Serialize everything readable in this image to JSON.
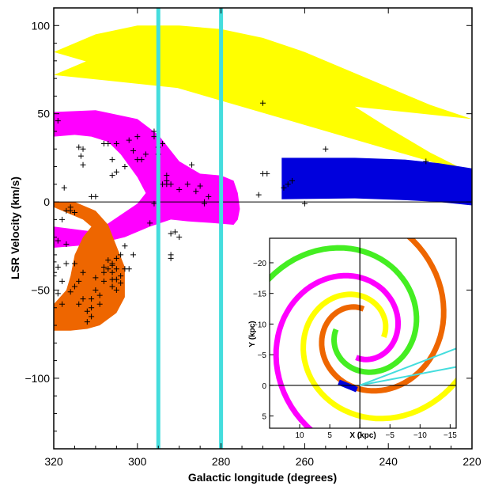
{
  "chart_data": [
    {
      "type": "scatter",
      "title": "",
      "xlabel": "Galactic longitude (degrees)",
      "ylabel": "LSR Velocity (km/s)",
      "xlim": [
        320,
        220
      ],
      "ylim": [
        -140,
        110
      ],
      "xticks": [
        320,
        300,
        280,
        260,
        240,
        220
      ],
      "yticks": [
        100,
        50,
        0,
        -50,
        -100
      ],
      "grid": false,
      "legend": "none",
      "colors": {
        "yellow": "#ffff00",
        "magenta": "#ff00ff",
        "orange": "#ee6600",
        "blue": "#0000dd",
        "cyan": "#44dddd",
        "points": "#000000"
      },
      "bands": [
        {
          "color": "yellow",
          "upper": [
            [
              320,
              85
            ],
            [
              310,
              95
            ],
            [
              300,
              100
            ],
            [
              290,
              100
            ],
            [
              280,
              98
            ],
            [
              270,
              93
            ],
            [
              260,
              85
            ],
            [
              250,
              75
            ],
            [
              240,
              65
            ],
            [
              230,
              55
            ],
            [
              220,
              47
            ]
          ],
          "lower": [
            [
              320,
              72
            ],
            [
              310,
              82
            ],
            [
              300,
              86
            ],
            [
              290,
              85
            ],
            [
              280,
              83
            ],
            [
              270,
              78
            ],
            [
              260,
              70
            ],
            [
              250,
              57
            ],
            [
              240,
              42
            ],
            [
              230,
              28
            ],
            [
              220,
              16
            ]
          ]
        },
        {
          "color": "magenta",
          "upper": [
            [
              320,
              51
            ],
            [
              310,
              52
            ],
            [
              300,
              47
            ],
            [
              295,
              38
            ],
            [
              290,
              23
            ],
            [
              285,
              16
            ],
            [
              280,
              15
            ],
            [
              277,
              12
            ],
            [
              276,
              5
            ],
            [
              275.5,
              -4
            ],
            [
              276,
              -10
            ],
            [
              277,
              -13
            ],
            [
              282,
              -12
            ],
            [
              288,
              -11
            ],
            [
              292,
              -10
            ],
            [
              297,
              -14
            ],
            [
              303,
              -20
            ],
            [
              310,
              -24
            ],
            [
              320,
              -26
            ]
          ],
          "lower": [
            [
              320,
              -14
            ],
            [
              310,
              -17
            ],
            [
              305,
              -9
            ],
            [
              300,
              -1
            ],
            [
              297,
              8
            ],
            [
              293,
              12
            ],
            [
              289,
              17
            ],
            [
              285,
              14
            ],
            [
              282,
              9
            ],
            [
              280,
              3
            ],
            [
              282,
              -3
            ],
            [
              288,
              -5
            ],
            [
              292,
              -4
            ],
            [
              296,
              -4
            ],
            [
              300,
              14
            ],
            [
              304,
              27
            ],
            [
              307,
              34
            ],
            [
              311,
              37
            ],
            [
              315,
              38
            ],
            [
              320,
              37
            ]
          ]
        },
        {
          "color": "orange",
          "upper": [
            [
              320,
              0
            ],
            [
              315,
              0
            ],
            [
              310,
              -5
            ],
            [
              307,
              -13
            ],
            [
              305,
              -25
            ],
            [
              303,
              -37
            ],
            [
              303,
              -54
            ],
            [
              305,
              -63
            ],
            [
              309,
              -70
            ],
            [
              312,
              -72
            ],
            [
              316,
              -73
            ],
            [
              320,
              -73
            ]
          ],
          "lower": [
            [
              320,
              -58
            ],
            [
              317,
              -50
            ],
            [
              316,
              -42
            ],
            [
              315,
              -30
            ],
            [
              313,
              -20
            ],
            [
              311,
              -14
            ],
            [
              313,
              -10
            ],
            [
              318,
              -5
            ],
            [
              320,
              -3
            ]
          ]
        },
        {
          "color": "blue",
          "upper": [
            [
              265.5,
              25
            ],
            [
              248,
              25
            ],
            [
              236,
              24
            ],
            [
              228,
              22
            ],
            [
              220,
              19
            ]
          ],
          "lower": [
            [
              220,
              -2
            ],
            [
              228,
              0
            ],
            [
              236,
              1
            ],
            [
              248,
              2
            ],
            [
              265.5,
              1.5
            ]
          ]
        }
      ],
      "vertical_lines": [
        {
          "x": 295,
          "color": "cyan"
        },
        {
          "x": 280,
          "color": "cyan"
        }
      ],
      "reference_lines": [
        {
          "y": 0
        }
      ],
      "points": [
        [
          319,
          46
        ],
        [
          317.5,
          8
        ],
        [
          317,
          -5
        ],
        [
          314,
          31
        ],
        [
          313,
          30
        ],
        [
          313.5,
          26
        ],
        [
          313,
          21
        ],
        [
          311,
          3
        ],
        [
          310,
          3
        ],
        [
          308,
          33
        ],
        [
          307,
          33
        ],
        [
          306,
          24
        ],
        [
          305,
          33
        ],
        [
          305,
          17
        ],
        [
          306,
          15
        ],
        [
          303,
          20
        ],
        [
          302,
          35
        ],
        [
          301,
          29
        ],
        [
          300,
          37
        ],
        [
          300,
          24
        ],
        [
          299,
          24
        ],
        [
          298,
          27
        ],
        [
          296,
          40
        ],
        [
          296,
          37
        ],
        [
          295,
          31
        ],
        [
          295,
          27
        ],
        [
          294,
          33
        ],
        [
          294,
          10
        ],
        [
          293,
          15
        ],
        [
          293,
          12
        ],
        [
          293,
          10
        ],
        [
          292,
          10
        ],
        [
          290,
          7
        ],
        [
          288,
          10
        ],
        [
          287,
          21
        ],
        [
          286,
          6
        ],
        [
          285,
          9
        ],
        [
          284,
          -1
        ],
        [
          283,
          3
        ],
        [
          284,
          0
        ],
        [
          296,
          -1
        ],
        [
          297,
          -12
        ],
        [
          292,
          -18
        ],
        [
          290,
          -20
        ],
        [
          292,
          -30
        ],
        [
          292,
          -32
        ],
        [
          301,
          -30
        ],
        [
          291,
          -17
        ],
        [
          319,
          -22
        ],
        [
          318,
          -10
        ],
        [
          316,
          -5
        ],
        [
          315,
          -6
        ],
        [
          316,
          -3
        ],
        [
          317,
          -24
        ],
        [
          317,
          -35
        ],
        [
          319,
          -37
        ],
        [
          318,
          -45
        ],
        [
          320,
          -34
        ],
        [
          320,
          -42
        ],
        [
          319,
          -52
        ],
        [
          318,
          -58
        ],
        [
          315,
          -35
        ],
        [
          314,
          -45
        ],
        [
          313,
          -40
        ],
        [
          313,
          -55
        ],
        [
          312,
          -62
        ],
        [
          311,
          -60
        ],
        [
          311,
          -55
        ],
        [
          310,
          -50
        ],
        [
          310,
          -43
        ],
        [
          309,
          -58
        ],
        [
          309,
          -53
        ],
        [
          308,
          -45
        ],
        [
          308,
          -40
        ],
        [
          307,
          -33
        ],
        [
          306,
          -36
        ],
        [
          306,
          -40
        ],
        [
          305,
          -32
        ],
        [
          305,
          -38
        ],
        [
          304,
          -42
        ],
        [
          303,
          -38
        ],
        [
          306,
          -44
        ],
        [
          306,
          -48
        ],
        [
          305,
          -50
        ],
        [
          304,
          -30
        ],
        [
          303,
          -25
        ],
        [
          314,
          -58
        ],
        [
          312,
          -68
        ],
        [
          311,
          -65
        ],
        [
          316,
          -51
        ],
        [
          315,
          -48
        ],
        [
          308,
          -37
        ],
        [
          307,
          -38
        ],
        [
          306,
          -35
        ],
        [
          305,
          -44
        ],
        [
          304,
          -46
        ],
        [
          302,
          -38
        ],
        [
          270,
          56
        ],
        [
          270,
          16
        ],
        [
          269,
          16
        ],
        [
          271,
          4
        ],
        [
          265,
          8
        ],
        [
          264,
          10
        ],
        [
          263,
          12
        ],
        [
          260,
          -1
        ],
        [
          255,
          30
        ],
        [
          231,
          23
        ]
      ]
    },
    {
      "type": "line",
      "title": "",
      "xlabel": "X (kpc)",
      "ylabel": "Y (kpc)",
      "xlim": [
        15,
        -16
      ],
      "ylim": [
        7,
        -24
      ],
      "xticks": [
        10,
        5,
        0,
        -5,
        -10,
        -15
      ],
      "yticks": [
        -20,
        -15,
        -10,
        -5,
        0,
        5
      ],
      "sun": [
        0,
        0
      ],
      "lines_of_sight": [
        {
          "color": "cyan",
          "from": [
            0,
            0
          ],
          "to": [
            -16,
            -6
          ]
        },
        {
          "color": "cyan",
          "from": [
            0,
            0
          ],
          "to": [
            -16,
            -3
          ]
        }
      ],
      "arms": [
        {
          "color": "magenta",
          "a": 4.0,
          "k": 0.25,
          "t0": 7.7,
          "t1": 14.7
        },
        {
          "color": "yellow",
          "a": 4.0,
          "k": 0.25,
          "t0": 9.27,
          "t1": 16.27
        },
        {
          "color": "orange",
          "a": 4.0,
          "k": 0.25,
          "t0": 10.84,
          "t1": 17.84
        },
        {
          "color": "green",
          "a": 4.0,
          "k": 0.25,
          "t0": 12.41,
          "t1": 19.41
        },
        {
          "color": "blue",
          "segment": [
            [
              3.5,
              -0.5
            ],
            [
              0.5,
              0.7
            ]
          ]
        }
      ],
      "colors": {
        "green": "#44ee22"
      }
    }
  ]
}
